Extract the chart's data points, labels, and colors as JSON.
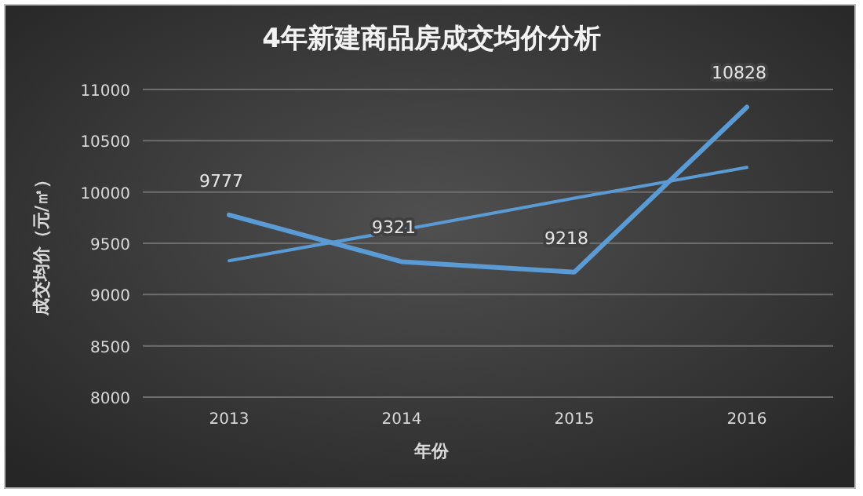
{
  "chart_data": {
    "type": "line",
    "title": "4年新建商品房成交均价分析",
    "xlabel": "年份",
    "ylabel": "成交均价（元/㎡）",
    "categories": [
      "2013",
      "2014",
      "2015",
      "2016"
    ],
    "series": [
      {
        "color": "#5b9bd5",
        "values": [
          9777,
          9321,
          9218,
          10828
        ],
        "value_labels": [
          "9777",
          "9321",
          "9218",
          "10828"
        ]
      },
      {
        "type": "line",
        "color": "#5b9bd5",
        "values": [
          9330,
          9630,
          9940,
          10240
        ]
      }
    ],
    "ylim": [
      8000,
      11000
    ],
    "yticks": [
      8000,
      8500,
      9000,
      9500,
      10000,
      10500,
      11000
    ],
    "grid": "y",
    "marker": "none",
    "line_style": "solid"
  }
}
